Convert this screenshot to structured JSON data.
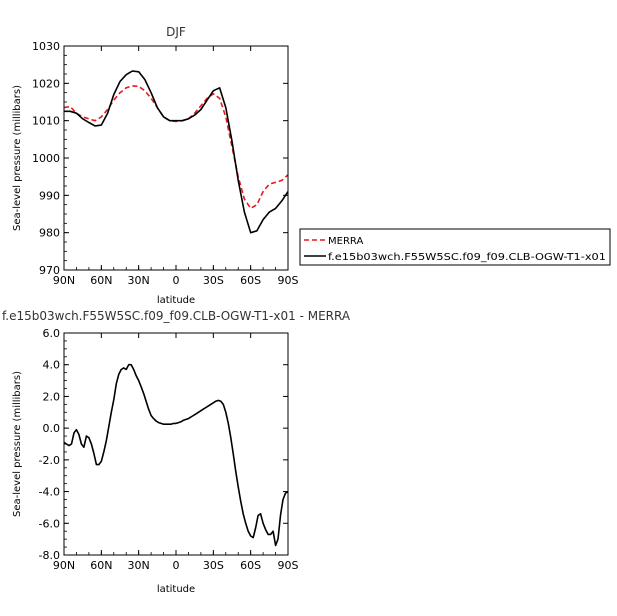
{
  "chart_data": [
    {
      "type": "line",
      "title": "DJF",
      "xlabel": "latitude",
      "ylabel": "Sea-level pressure (millibars)",
      "xlim": [
        90,
        -90
      ],
      "ylim": [
        970,
        1030
      ],
      "x_ticks": [
        90,
        60,
        30,
        0,
        -30,
        -60,
        -90
      ],
      "x_tick_labels": [
        "90N",
        "60N",
        "30N",
        "0",
        "30S",
        "60S",
        "90S"
      ],
      "y_ticks": [
        970,
        980,
        990,
        1000,
        1010,
        1020,
        1030
      ],
      "y_tick_labels": [
        "970",
        "980",
        "990",
        "1000",
        "1010",
        "1020",
        "1030"
      ],
      "legend_position": "right",
      "series": [
        {
          "name": "MERRA",
          "color": "#e41a1c",
          "dash": "dashed",
          "x": [
            90,
            85,
            80,
            75,
            70,
            65,
            60,
            55,
            50,
            45,
            40,
            35,
            30,
            25,
            20,
            15,
            10,
            5,
            0,
            -5,
            -10,
            -15,
            -20,
            -25,
            -30,
            -35,
            -40,
            -45,
            -50,
            -55,
            -60,
            -65,
            -70,
            -75,
            -80,
            -85,
            -90
          ],
          "y": [
            1013.5,
            1013.8,
            1012,
            1011,
            1010.5,
            1010,
            1011,
            1013,
            1015.5,
            1017.5,
            1018.8,
            1019.3,
            1019.2,
            1018,
            1016,
            1013.5,
            1011,
            1010,
            1009.8,
            1010,
            1010.5,
            1012,
            1014,
            1016,
            1017.2,
            1016,
            1011,
            1003,
            995,
            989,
            986.5,
            987.5,
            991,
            993,
            993.5,
            994,
            995.5
          ]
        },
        {
          "name": "f.e15b03wch.F55W5SC.f09_f09.CLB-OGW-T1-x01",
          "color": "#000000",
          "dash": "solid",
          "x": [
            90,
            85,
            80,
            75,
            70,
            65,
            60,
            55,
            50,
            45,
            40,
            35,
            30,
            25,
            20,
            15,
            10,
            5,
            0,
            -5,
            -10,
            -15,
            -20,
            -25,
            -30,
            -35,
            -40,
            -45,
            -50,
            -55,
            -60,
            -65,
            -70,
            -75,
            -80,
            -85,
            -90
          ],
          "y": [
            1012.5,
            1012.5,
            1012,
            1010.5,
            1009.5,
            1008.6,
            1008.8,
            1012,
            1017,
            1020.5,
            1022.3,
            1023.3,
            1023.1,
            1021,
            1017.5,
            1013.5,
            1011,
            1010,
            1010,
            1010,
            1010.5,
            1011.5,
            1013,
            1015.5,
            1018,
            1018.8,
            1013.5,
            1004.5,
            994,
            985.5,
            980,
            980.5,
            983.5,
            985.5,
            986.5,
            988.5,
            991
          ]
        }
      ]
    },
    {
      "type": "line",
      "title": "f.e15b03wch.F55W5SC.f09_f09.CLB-OGW-T1-x01 - MERRA",
      "xlabel": "latitude",
      "ylabel": "Sea-level pressure (millibars)",
      "xlim": [
        90,
        -90
      ],
      "ylim": [
        -8,
        6
      ],
      "x_ticks": [
        90,
        60,
        30,
        0,
        -30,
        -60,
        -90
      ],
      "x_tick_labels": [
        "90N",
        "60N",
        "30N",
        "0",
        "30S",
        "60S",
        "90S"
      ],
      "y_ticks": [
        -8,
        -6,
        -4,
        -2,
        0,
        2,
        4,
        6
      ],
      "y_tick_labels": [
        "-8.0",
        "-6.0",
        "-4.0",
        "-2.0",
        "0.0",
        "2.0",
        "4.0",
        "6.0"
      ],
      "series": [
        {
          "color": "#000000",
          "dash": "solid",
          "x": [
            90,
            88,
            86,
            84,
            82,
            80,
            78,
            76,
            74,
            72,
            70,
            68,
            66,
            64,
            62,
            60,
            58,
            56,
            54,
            52,
            50,
            48,
            46,
            44,
            42,
            40,
            38,
            36,
            34,
            32,
            30,
            28,
            26,
            24,
            22,
            20,
            18,
            16,
            14,
            12,
            10,
            8,
            6,
            4,
            2,
            0,
            -2,
            -4,
            -6,
            -8,
            -10,
            -12,
            -14,
            -16,
            -18,
            -20,
            -22,
            -24,
            -26,
            -28,
            -30,
            -32,
            -34,
            -36,
            -38,
            -40,
            -42,
            -44,
            -46,
            -48,
            -50,
            -52,
            -54,
            -56,
            -58,
            -60,
            -62,
            -64,
            -66,
            -68,
            -70,
            -72,
            -74,
            -76,
            -78,
            -80,
            -82,
            -84,
            -86,
            -88,
            -90
          ],
          "y": [
            -0.9,
            -1.0,
            -1.1,
            -1.0,
            -0.3,
            -0.1,
            -0.4,
            -1.0,
            -1.2,
            -0.5,
            -0.6,
            -1.0,
            -1.6,
            -2.3,
            -2.3,
            -2.1,
            -1.5,
            -0.8,
            0.1,
            1.0,
            1.8,
            2.8,
            3.4,
            3.7,
            3.8,
            3.7,
            4.0,
            4.0,
            3.7,
            3.3,
            3.0,
            2.6,
            2.2,
            1.7,
            1.2,
            0.8,
            0.6,
            0.45,
            0.35,
            0.3,
            0.25,
            0.25,
            0.25,
            0.25,
            0.3,
            0.3,
            0.35,
            0.4,
            0.5,
            0.55,
            0.6,
            0.7,
            0.8,
            0.9,
            1.0,
            1.1,
            1.2,
            1.3,
            1.4,
            1.5,
            1.6,
            1.7,
            1.75,
            1.7,
            1.5,
            1.0,
            0.3,
            -0.6,
            -1.6,
            -2.7,
            -3.7,
            -4.6,
            -5.4,
            -6.0,
            -6.5,
            -6.8,
            -6.9,
            -6.3,
            -5.5,
            -5.4,
            -6.0,
            -6.4,
            -6.7,
            -6.7,
            -6.5,
            -7.4,
            -7.0,
            -5.5,
            -4.5,
            -4.1,
            -4.0
          ]
        }
      ]
    }
  ]
}
